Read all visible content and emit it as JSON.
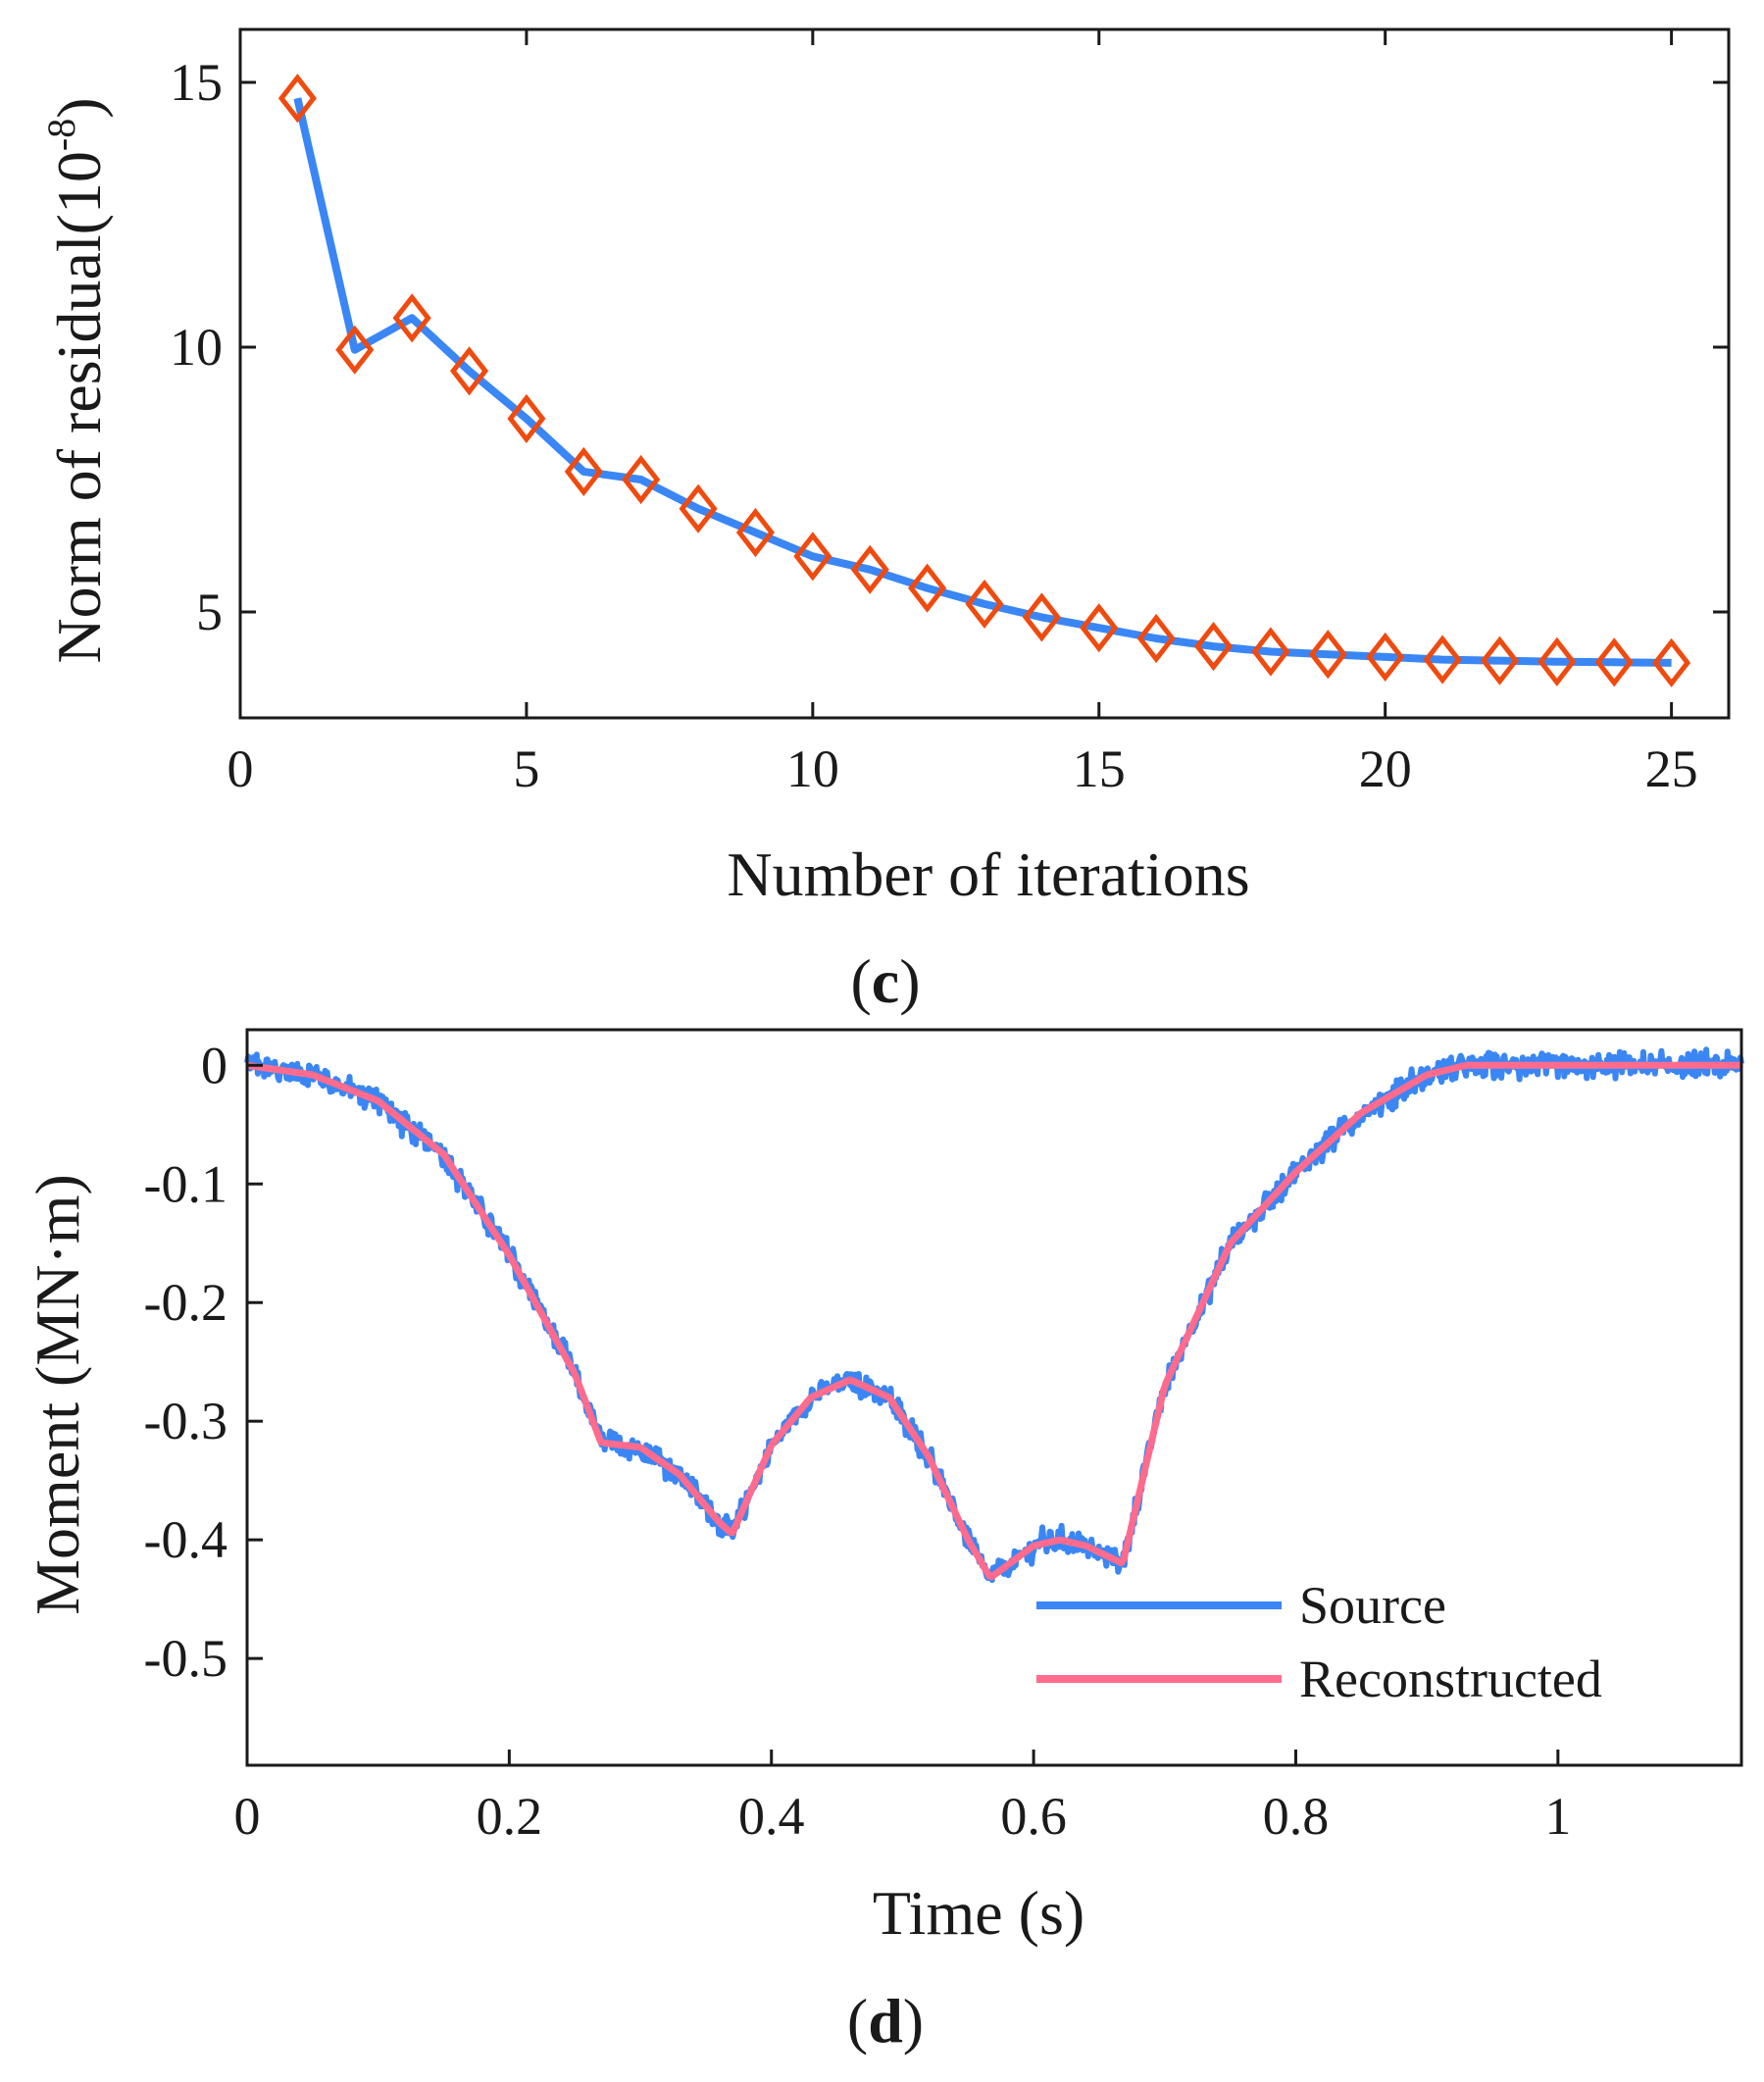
{
  "chart_data": [
    {
      "id": "c",
      "type": "line",
      "panel_label": "c",
      "title": "",
      "xlabel": "Number of iterations",
      "ylabel_main": "Norm of residual(10",
      "ylabel_exp": "-8",
      "ylabel_close": ")",
      "xlim": [
        0,
        26
      ],
      "ylim": [
        3,
        16
      ],
      "xticks": [
        0,
        5,
        10,
        15,
        20,
        25
      ],
      "yticks": [
        5,
        10,
        15
      ],
      "grid": false,
      "line_color": "#3a86f5",
      "marker_color": "#f04a0e",
      "marker": "diamond",
      "series": [
        {
          "name": "Norm of residual",
          "x": [
            1,
            2,
            3,
            4,
            5,
            6,
            7,
            8,
            9,
            10,
            11,
            12,
            13,
            14,
            15,
            16,
            17,
            18,
            19,
            20,
            21,
            22,
            23,
            24,
            25
          ],
          "y": [
            14.7,
            9.95,
            10.55,
            9.55,
            8.65,
            7.65,
            7.5,
            6.95,
            6.5,
            6.05,
            5.8,
            5.45,
            5.15,
            4.9,
            4.7,
            4.5,
            4.35,
            4.25,
            4.2,
            4.15,
            4.1,
            4.08,
            4.06,
            4.05,
            4.04
          ]
        }
      ]
    },
    {
      "id": "d",
      "type": "line",
      "panel_label": "d",
      "title": "",
      "xlabel": "Time (s)",
      "ylabel": "Moment (MN·m)",
      "xlim": [
        0,
        1.14
      ],
      "ylim": [
        -0.59,
        0.03
      ],
      "xticks": [
        0,
        0.2,
        0.4,
        0.6,
        0.8,
        1
      ],
      "xtick_labels": [
        "0",
        "0.2",
        "0.4",
        "0.6",
        "0.8",
        "1"
      ],
      "yticks": [
        0,
        -0.1,
        -0.2,
        -0.3,
        -0.4,
        -0.5
      ],
      "ytick_labels": [
        "0",
        "-0.1",
        "-0.2",
        "-0.3",
        "-0.4",
        "-0.5"
      ],
      "grid": false,
      "legend_position": "bottom-right",
      "series": [
        {
          "name": "Source",
          "color": "#3a86f5",
          "noise_amplitude": 0.012,
          "x": [
            0,
            0.05,
            0.1,
            0.15,
            0.2,
            0.25,
            0.27,
            0.3,
            0.33,
            0.36,
            0.37,
            0.4,
            0.43,
            0.46,
            0.49,
            0.52,
            0.55,
            0.567,
            0.6,
            0.62,
            0.64,
            0.668,
            0.7,
            0.75,
            0.8,
            0.85,
            0.9,
            0.93,
            1.0,
            1.14
          ],
          "y": [
            0,
            -0.008,
            -0.03,
            -0.075,
            -0.16,
            -0.26,
            -0.318,
            -0.322,
            -0.345,
            -0.385,
            -0.395,
            -0.32,
            -0.28,
            -0.265,
            -0.28,
            -0.33,
            -0.4,
            -0.432,
            -0.405,
            -0.4,
            -0.405,
            -0.42,
            -0.27,
            -0.15,
            -0.09,
            -0.04,
            -0.008,
            0,
            0,
            0
          ]
        },
        {
          "name": "Reconstructed",
          "color": "#ff6b8d",
          "x": [
            0,
            0.05,
            0.1,
            0.15,
            0.2,
            0.25,
            0.27,
            0.3,
            0.33,
            0.36,
            0.37,
            0.4,
            0.43,
            0.46,
            0.49,
            0.52,
            0.55,
            0.567,
            0.6,
            0.62,
            0.64,
            0.668,
            0.7,
            0.75,
            0.8,
            0.85,
            0.9,
            0.93,
            1.0,
            1.14
          ],
          "y": [
            0,
            -0.008,
            -0.03,
            -0.075,
            -0.16,
            -0.26,
            -0.318,
            -0.322,
            -0.345,
            -0.385,
            -0.395,
            -0.32,
            -0.28,
            -0.265,
            -0.28,
            -0.33,
            -0.4,
            -0.432,
            -0.405,
            -0.4,
            -0.405,
            -0.42,
            -0.27,
            -0.15,
            -0.09,
            -0.04,
            -0.008,
            0,
            0,
            0
          ]
        }
      ]
    }
  ]
}
